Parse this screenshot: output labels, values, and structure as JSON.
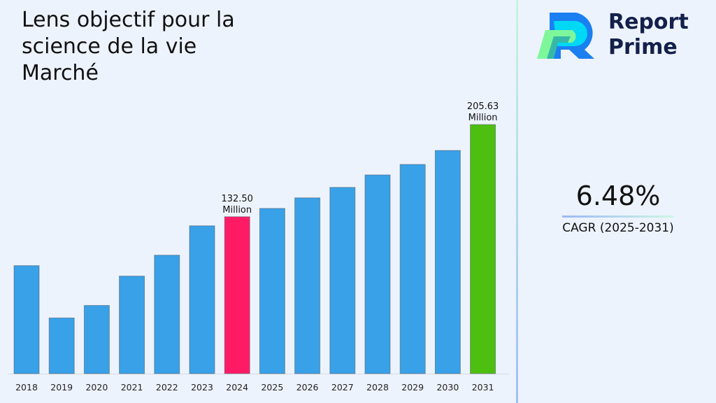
{
  "title": "Lens objectif pour la science de la vie Marché",
  "logo": {
    "line1": "Report",
    "line2": "Prime"
  },
  "cagr": {
    "value": "6.48%",
    "label": "CAGR (2025-2031)"
  },
  "colors": {
    "default_bar": "#38a1e8",
    "highlight_2024": "#ff1a66",
    "highlight_2031": "#4cbf10",
    "background": "#edf3fd"
  },
  "chart_data": {
    "type": "bar",
    "title": "Lens objectif pour la science de la vie Marché",
    "xlabel": "",
    "ylabel": "",
    "categories": [
      "2018",
      "2019",
      "2020",
      "2021",
      "2022",
      "2023",
      "2024",
      "2025",
      "2026",
      "2027",
      "2028",
      "2029",
      "2030",
      "2031"
    ],
    "values": [
      93.7,
      52.2,
      62.1,
      85.4,
      102.0,
      125.3,
      132.5,
      139.1,
      147.5,
      155.8,
      165.7,
      174.0,
      185.1,
      205.63
    ],
    "data_labels": {
      "2024": [
        "132.50",
        "Million"
      ],
      "2031": [
        "205.63",
        "Million"
      ]
    },
    "ylim": [
      8,
      214
    ],
    "grid": false,
    "legend": "none"
  }
}
